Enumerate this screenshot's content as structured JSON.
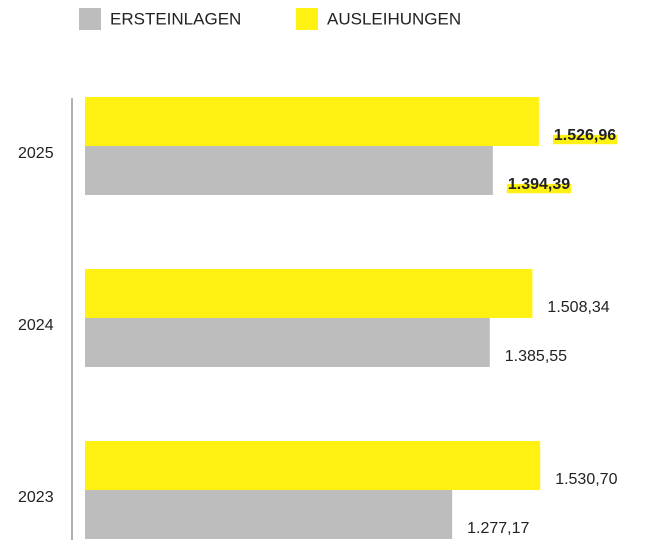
{
  "chart_data": {
    "type": "hbar",
    "categories": [
      "2025",
      "2024",
      "2023"
    ],
    "series": [
      {
        "name": "ERSTEINLAGEN",
        "color": "#bdbdbd",
        "values": [
          1394.39,
          1385.55,
          1277.17
        ],
        "value_labels": [
          "1.394,39",
          "1.385,55",
          "1.277,17"
        ]
      },
      {
        "name": "AUSLEIHUNGEN",
        "color": "#fff212",
        "values": [
          1526.96,
          1508.34,
          1530.7
        ],
        "value_labels": [
          "1.526,96",
          "1.508,34",
          "1.530,70"
        ]
      }
    ],
    "xlim": [
      220,
      1700
    ],
    "legend": "top",
    "highlight_index": 0
  }
}
